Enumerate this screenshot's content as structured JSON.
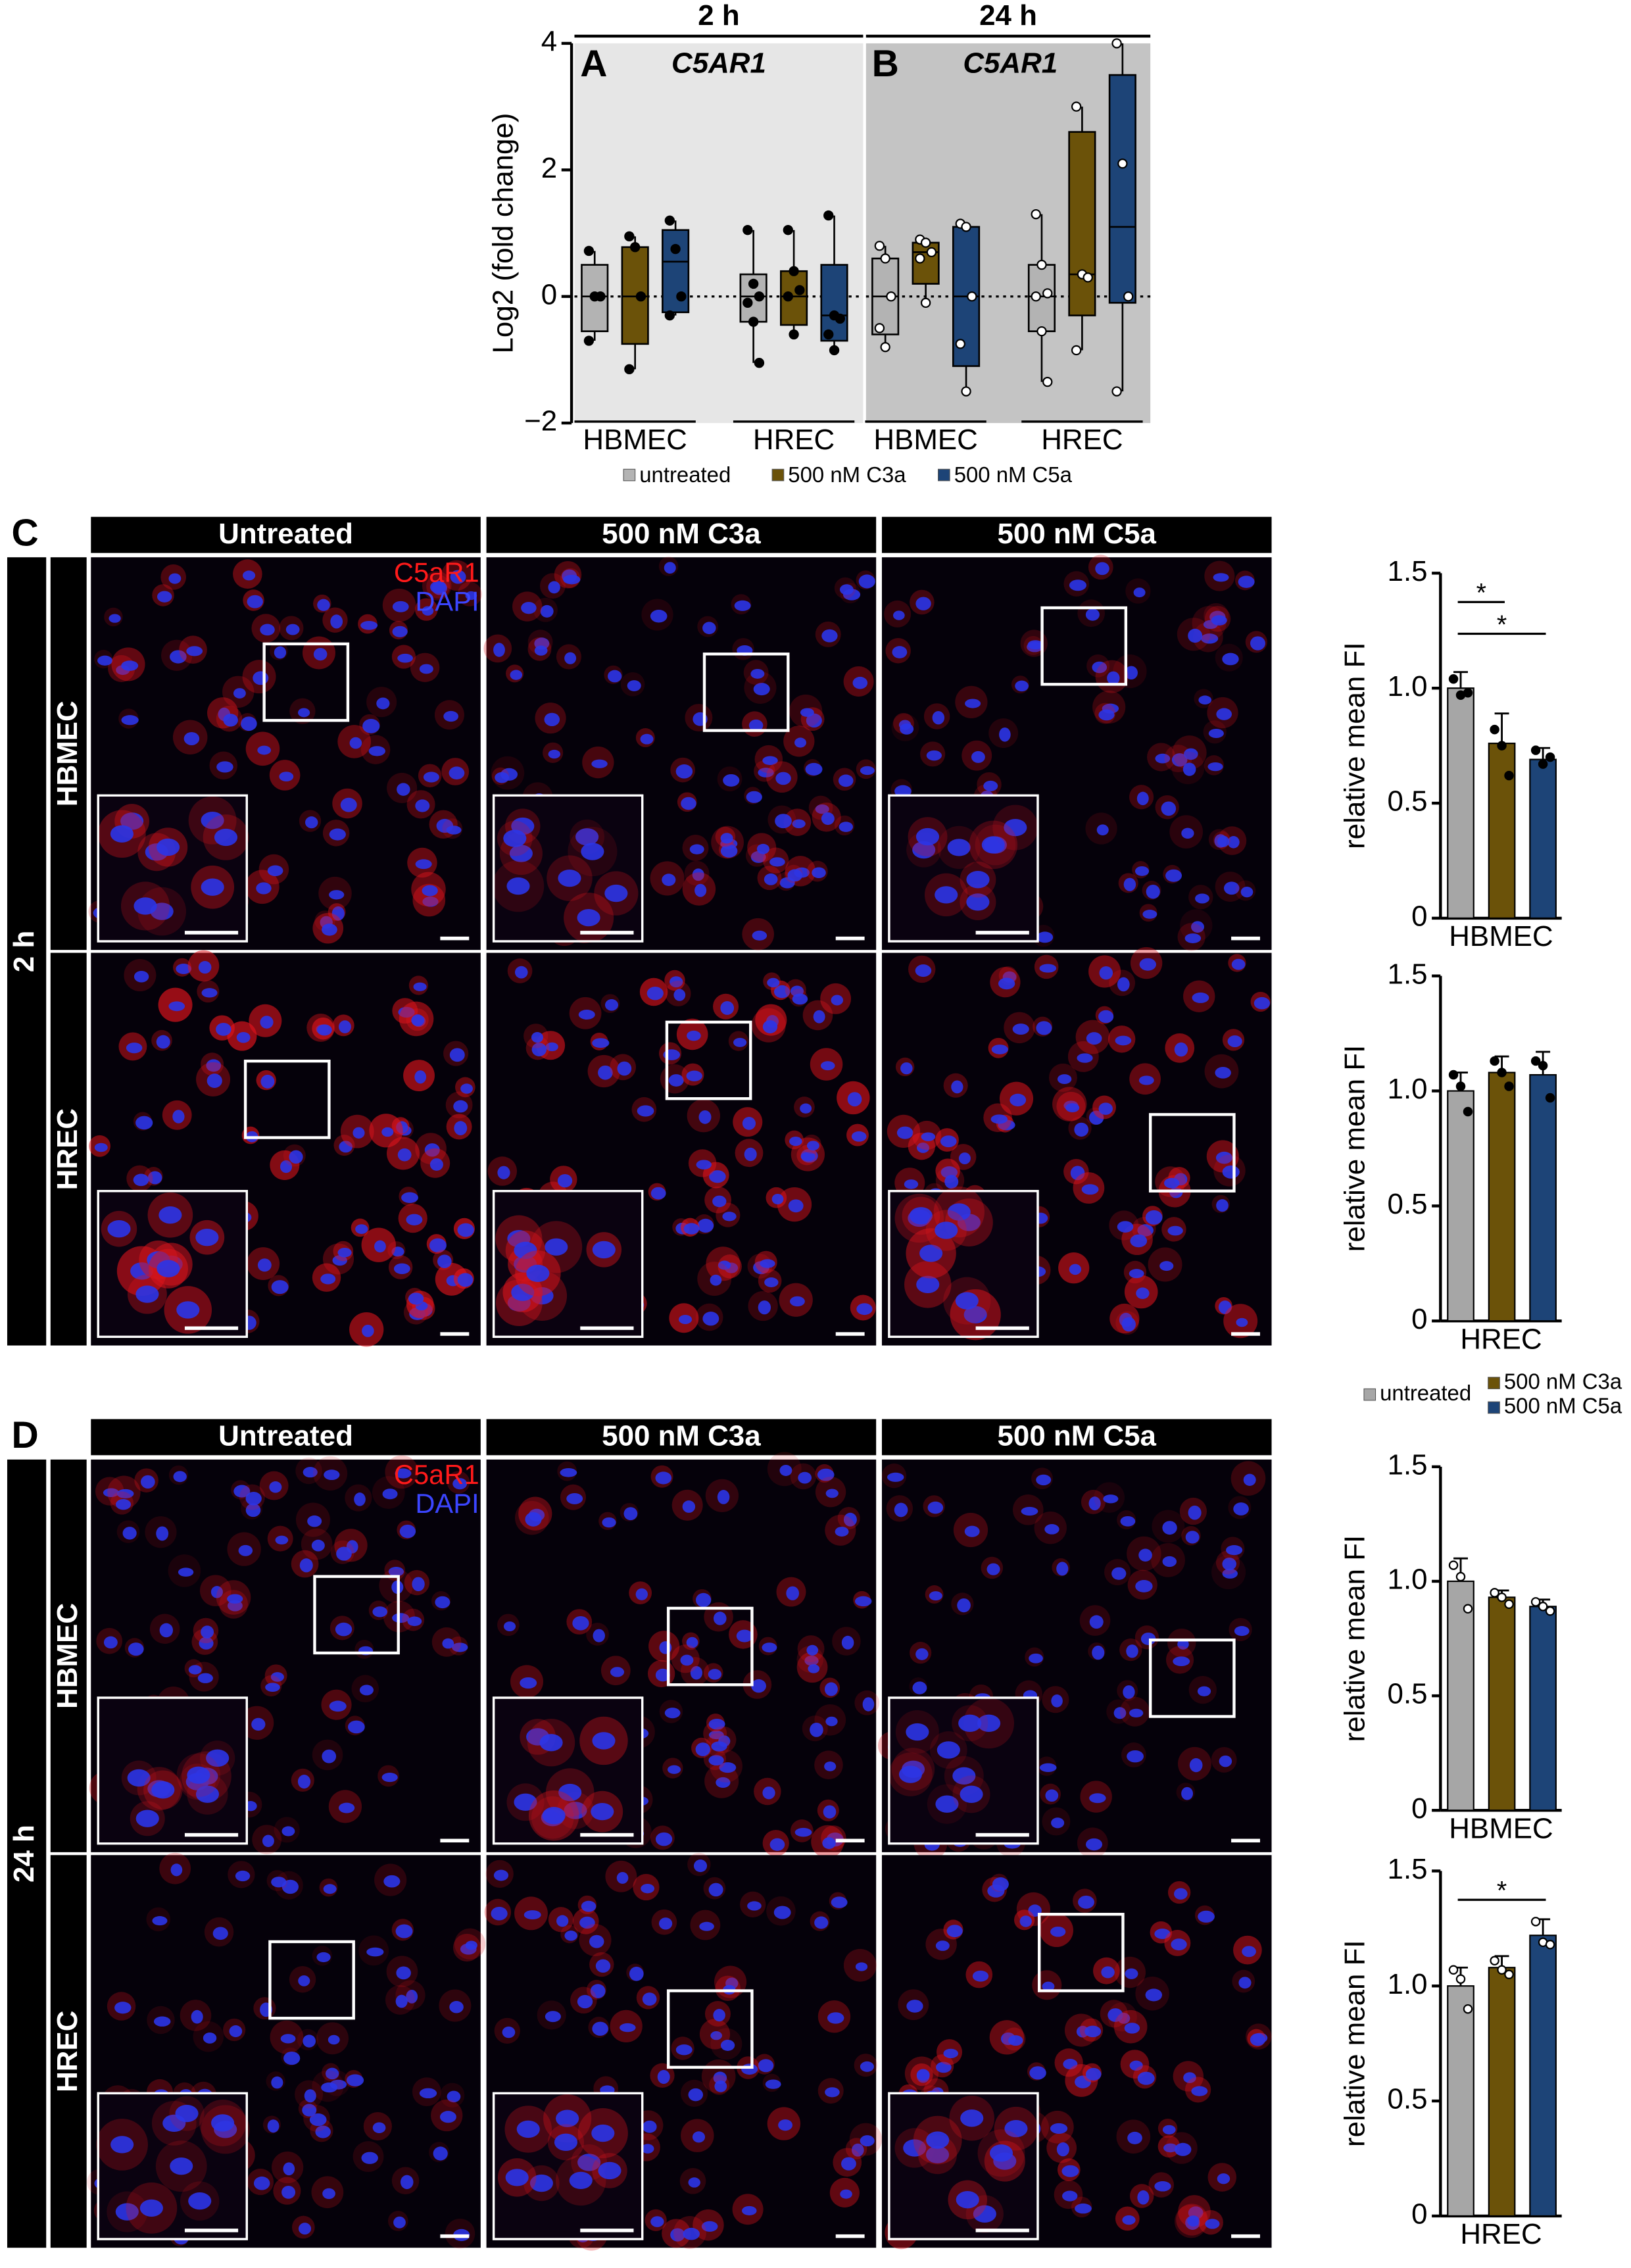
{
  "chart_data": [
    {
      "type": "box",
      "panel": "A",
      "header": "2 h",
      "title": "C5AR1",
      "ylabel": "Log2 (fold change)",
      "ylim": [
        -2,
        4
      ],
      "yticks": [
        {
          "value": -2,
          "label": "−2"
        },
        0,
        2,
        4
      ],
      "zero_line": true,
      "background": "#e6e6e6",
      "point_style": "filled",
      "groups": [
        "HBMEC",
        "HREC"
      ],
      "series": [
        {
          "name": "untreated",
          "color": "#b3b3b3",
          "boxes": [
            {
              "min": -0.7,
              "q1": -0.55,
              "median": 0,
              "q3": 0.5,
              "max": 0.72,
              "points": [
                0.72,
                0,
                0,
                -0.7
              ]
            },
            {
              "min": -1.05,
              "q1": -0.4,
              "median": 0,
              "q3": 0.35,
              "max": 1.05,
              "points": [
                1.05,
                0.2,
                0,
                -0.1,
                -0.4,
                -1.05
              ]
            }
          ]
        },
        {
          "name": "500 nM C3a",
          "color": "#6b5209",
          "boxes": [
            {
              "min": -1.15,
              "q1": -0.75,
              "median": 0,
              "q3": 0.78,
              "max": 0.95,
              "points": [
                0.95,
                0.78,
                0,
                -1.15
              ]
            },
            {
              "min": -0.6,
              "q1": -0.45,
              "median": 0,
              "q3": 0.4,
              "max": 1.05,
              "points": [
                1.05,
                0.4,
                0.1,
                0,
                -0.6
              ]
            }
          ]
        },
        {
          "name": "500 nM C5a",
          "color": "#1d4477",
          "boxes": [
            {
              "min": -0.3,
              "q1": -0.25,
              "median": 0.55,
              "q3": 1.05,
              "max": 1.2,
              "points": [
                1.2,
                0.75,
                0,
                -0.3
              ]
            },
            {
              "min": -0.85,
              "q1": -0.7,
              "median": -0.3,
              "q3": 0.5,
              "max": 1.28,
              "points": [
                1.28,
                -0.3,
                -0.35,
                -0.6,
                -0.85
              ]
            }
          ]
        }
      ]
    },
    {
      "type": "box",
      "panel": "B",
      "header": "24 h",
      "title": "C5AR1",
      "ylim": [
        -2,
        4
      ],
      "zero_line": true,
      "background": "#c4c4c4",
      "point_style": "open",
      "groups": [
        "HBMEC",
        "HREC"
      ],
      "series": [
        {
          "color": "#b3b3b3",
          "boxes": [
            {
              "min": -0.8,
              "q1": -0.6,
              "median": 0,
              "q3": 0.6,
              "max": 0.8,
              "points": [
                0.8,
                0.6,
                0,
                -0.5,
                -0.8
              ]
            },
            {
              "min": -1.35,
              "q1": -0.55,
              "median": 0,
              "q3": 0.5,
              "max": 1.3,
              "points": [
                1.3,
                0.5,
                0.05,
                0,
                -0.55,
                -1.35
              ]
            }
          ]
        },
        {
          "color": "#6b5209",
          "boxes": [
            {
              "min": -0.1,
              "q1": 0.2,
              "median": 0.7,
              "q3": 0.85,
              "max": 0.9,
              "points": [
                0.9,
                0.85,
                0.7,
                0.6,
                -0.1
              ]
            },
            {
              "min": -0.85,
              "q1": -0.3,
              "median": 0.35,
              "q3": 2.6,
              "max": 3,
              "points": [
                3,
                0.35,
                0.3,
                -0.85
              ]
            }
          ]
        },
        {
          "color": "#1d4477",
          "boxes": [
            {
              "min": -1.5,
              "q1": -1.1,
              "median": 0,
              "q3": 1.1,
              "max": 1.15,
              "points": [
                1.15,
                1.1,
                0,
                -0.75,
                -1.5
              ]
            },
            {
              "min": -1.5,
              "q1": -0.1,
              "median": 1.1,
              "q3": 3.5,
              "max": 4,
              "points": [
                4,
                2.1,
                0,
                -1.5
              ]
            }
          ]
        }
      ]
    },
    {
      "type": "bar",
      "xlabel": "HBMEC",
      "ylabel": "relative mean FI",
      "ylim": [
        0,
        1.5
      ],
      "yticks": [
        0,
        0.5,
        {
          "value": 1,
          "label": "1.0"
        },
        1.5
      ],
      "point_style": "filled",
      "colors": [
        "#a6a6a6",
        "#6b5209",
        "#1d4477"
      ],
      "values": [
        1,
        0.76,
        0.69
      ],
      "errors": [
        0.07,
        0.13,
        0.05
      ],
      "points": [
        [
          1.04,
          0.97,
          0.98
        ],
        [
          0.82,
          0.75,
          0.62
        ],
        [
          0.73,
          0.67,
          0.7
        ]
      ],
      "significance": [
        {
          "from": 0,
          "to": 1,
          "label": "*"
        },
        {
          "from": 0,
          "to": 2,
          "label": "*"
        }
      ]
    },
    {
      "type": "bar",
      "xlabel": "HREC",
      "ylabel": "relative mean FI",
      "ylim": [
        0,
        1.5
      ],
      "yticks": [
        0,
        0.5,
        {
          "value": 1,
          "label": "1.0"
        },
        1.5
      ],
      "point_style": "filled",
      "colors": [
        "#a6a6a6",
        "#6b5209",
        "#1d4477"
      ],
      "values": [
        1,
        1.08,
        1.07
      ],
      "errors": [
        0.08,
        0.07,
        0.1
      ],
      "points": [
        [
          1.07,
          1.02,
          0.91
        ],
        [
          1.13,
          1.08,
          1.02
        ],
        [
          1.13,
          1.11,
          0.97
        ]
      ]
    },
    {
      "type": "bar",
      "xlabel": "HBMEC",
      "ylabel": "relative mean FI",
      "ylim": [
        0,
        1.5
      ],
      "yticks": [
        0,
        0.5,
        {
          "value": 1,
          "label": "1.0"
        },
        1.5
      ],
      "point_style": "open",
      "legend": [
        "untreated",
        "500 nM C3a",
        "500 nM C5a"
      ],
      "colors": [
        "#a6a6a6",
        "#6b5209",
        "#1d4477"
      ],
      "values": [
        1,
        0.93,
        0.89
      ],
      "errors": [
        0.1,
        0.03,
        0.03
      ],
      "points": [
        [
          1.07,
          1.02,
          0.88
        ],
        [
          0.95,
          0.93,
          0.9
        ],
        [
          0.91,
          0.89,
          0.87
        ]
      ]
    },
    {
      "type": "bar",
      "xlabel": "HREC",
      "ylabel": "relative mean FI",
      "ylim": [
        0,
        1.5
      ],
      "yticks": [
        0,
        0.5,
        {
          "value": 1,
          "label": "1.0"
        },
        1.5
      ],
      "point_style": "open",
      "colors": [
        "#a6a6a6",
        "#6b5209",
        "#1d4477"
      ],
      "values": [
        1,
        1.08,
        1.22
      ],
      "errors": [
        0.08,
        0.05,
        0.07
      ],
      "points": [
        [
          1.07,
          1.03,
          0.9
        ],
        [
          1.11,
          1.07,
          1.05
        ],
        [
          1.28,
          1.19,
          1.18
        ]
      ],
      "significance": [
        {
          "from": 0,
          "to": 2,
          "label": "*"
        }
      ]
    }
  ],
  "micrographs": [
    {
      "panel": "C",
      "time": "2 h",
      "columns": [
        "Untreated",
        "500 nM C3a",
        "500 nM C5a"
      ],
      "rows": [
        "HBMEC",
        "HREC"
      ],
      "stains": [
        "C5aR1",
        "DAPI"
      ]
    },
    {
      "panel": "D",
      "time": "24 h",
      "columns": [
        "Untreated",
        "500 nM C3a",
        "500 nM C5a"
      ],
      "rows": [
        "HBMEC",
        "HREC"
      ],
      "stains": [
        "C5aR1",
        "DAPI"
      ]
    }
  ]
}
